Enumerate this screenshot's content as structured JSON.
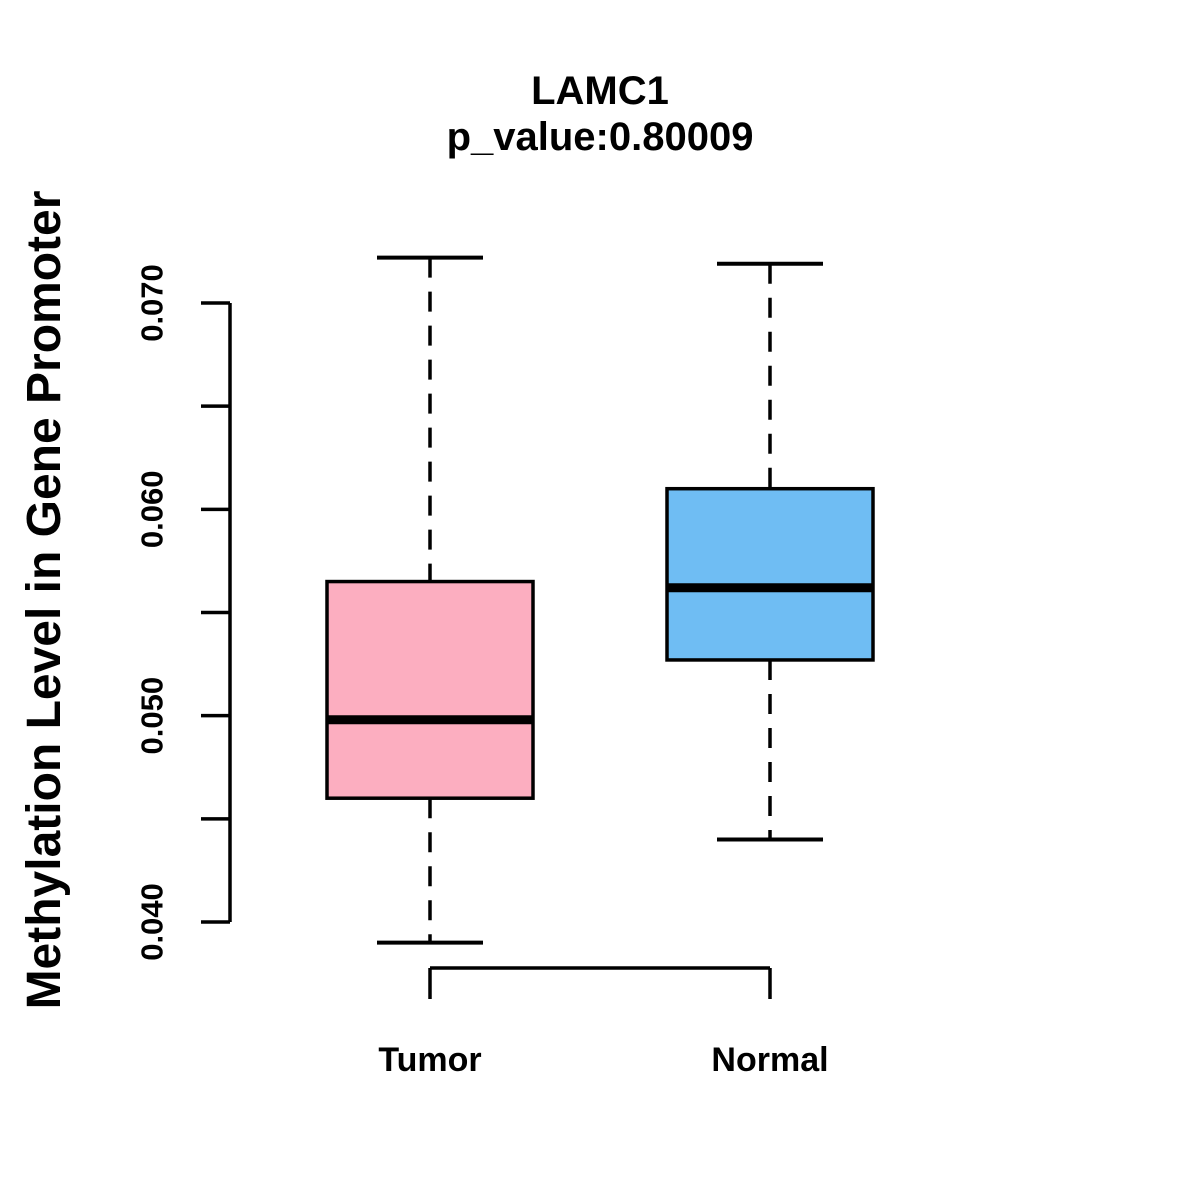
{
  "chart_data": {
    "type": "boxplot",
    "title": "LAMC1",
    "subtitle": "p_value:0.80009",
    "ylabel": "Methylation Level in Gene Promoter",
    "ylim": [
      0.04,
      0.07
    ],
    "y_ticks": [
      0.04,
      0.045,
      0.05,
      0.055,
      0.06,
      0.065,
      0.07
    ],
    "y_tick_labels": [
      {
        "value": 0.07,
        "label": "0.070"
      },
      {
        "value": 0.06,
        "label": "0.060"
      },
      {
        "value": 0.05,
        "label": "0.050"
      },
      {
        "value": 0.04,
        "label": "0.040"
      }
    ],
    "grid": false,
    "line_color": "#000000",
    "background_color": "#ffffff",
    "groups": [
      {
        "label": "Tumor",
        "fill_color": "#FCAEC0",
        "whisker_low": 0.039,
        "q1": 0.046,
        "median": 0.0498,
        "q3": 0.0565,
        "whisker_high": 0.0722
      },
      {
        "label": "Normal",
        "fill_color": "#6FBDF3",
        "whisker_low": 0.044,
        "q1": 0.0527,
        "median": 0.0562,
        "q3": 0.061,
        "whisker_high": 0.0719
      }
    ]
  }
}
